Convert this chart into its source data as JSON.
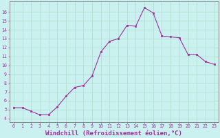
{
  "x": [
    0,
    1,
    2,
    3,
    4,
    5,
    6,
    7,
    8,
    9,
    10,
    11,
    12,
    13,
    14,
    15,
    16,
    17,
    18,
    19,
    20,
    21,
    22,
    23
  ],
  "y": [
    5.2,
    5.2,
    4.8,
    4.4,
    4.4,
    5.3,
    6.5,
    7.5,
    7.7,
    8.8,
    11.5,
    12.7,
    13.0,
    14.5,
    14.4,
    16.5,
    15.9,
    13.3,
    13.2,
    13.1,
    11.2,
    11.2,
    10.4,
    10.1
  ],
  "line_color": "#993399",
  "marker": "s",
  "marker_size": 1.8,
  "bg_color": "#cbf0f0",
  "grid_color": "#aaddcc",
  "axis_color": "#993399",
  "tick_color": "#993399",
  "xlabel": "Windchill (Refroidissement éolien,°C)",
  "xlabel_fontsize": 6.5,
  "ytick_labels": [
    "4",
    "5",
    "6",
    "7",
    "8",
    "9",
    "10",
    "11",
    "12",
    "13",
    "14",
    "15",
    "16"
  ],
  "ytick_vals": [
    4,
    5,
    6,
    7,
    8,
    9,
    10,
    11,
    12,
    13,
    14,
    15,
    16
  ],
  "ylim": [
    3.6,
    17.2
  ],
  "xlim": [
    -0.5,
    23.5
  ],
  "font_family": "monospace"
}
